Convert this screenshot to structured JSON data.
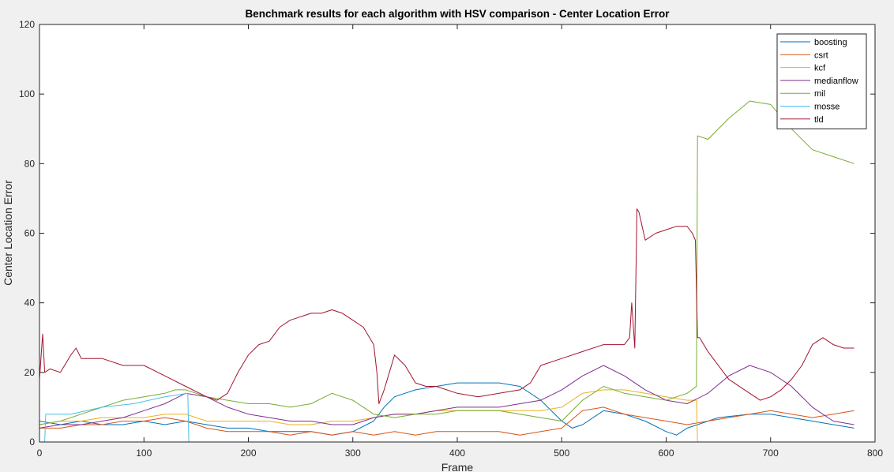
{
  "chart_data": {
    "type": "line",
    "title": "Benchmark results for each algorithm with HSV comparison - Center Location Error",
    "xlabel": "Frame",
    "ylabel": "Center Location Error",
    "xlim": [
      0,
      800
    ],
    "ylim": [
      0,
      120
    ],
    "xticks": [
      0,
      100,
      200,
      300,
      400,
      500,
      600,
      700,
      800
    ],
    "yticks": [
      0,
      20,
      40,
      60,
      80,
      100,
      120
    ],
    "grid": false,
    "legend_position": "top-right",
    "series": [
      {
        "name": "boosting",
        "color": "#0072BD",
        "x": [
          0,
          20,
          40,
          60,
          80,
          100,
          120,
          140,
          160,
          180,
          200,
          220,
          240,
          260,
          280,
          300,
          320,
          330,
          340,
          360,
          380,
          400,
          420,
          440,
          460,
          480,
          500,
          510,
          520,
          540,
          560,
          580,
          600,
          610,
          620,
          630,
          650,
          680,
          700,
          720,
          740,
          760,
          780
        ],
        "y": [
          6,
          5,
          6,
          5,
          5,
          6,
          5,
          6,
          5,
          4,
          4,
          3,
          3,
          3,
          2,
          3,
          6,
          10,
          13,
          15,
          16,
          17,
          17,
          17,
          16,
          12,
          6,
          4,
          5,
          9,
          8,
          6,
          3,
          2,
          4,
          5,
          7,
          8,
          8,
          7,
          6,
          5,
          4
        ]
      },
      {
        "name": "csrt",
        "color": "#D95319",
        "x": [
          0,
          20,
          40,
          60,
          80,
          100,
          120,
          140,
          160,
          180,
          200,
          220,
          240,
          260,
          280,
          300,
          320,
          340,
          360,
          380,
          400,
          420,
          440,
          460,
          480,
          500,
          520,
          540,
          560,
          580,
          600,
          620,
          640,
          660,
          680,
          700,
          720,
          740,
          760,
          780
        ],
        "y": [
          4,
          4,
          5,
          5,
          6,
          6,
          7,
          6,
          4,
          3,
          3,
          3,
          2,
          3,
          2,
          3,
          2,
          3,
          2,
          3,
          3,
          3,
          3,
          2,
          3,
          4,
          9,
          10,
          8,
          7,
          6,
          5,
          6,
          7,
          8,
          9,
          8,
          7,
          8,
          9
        ]
      },
      {
        "name": "kcf",
        "color": "#EDB120",
        "x": [
          0,
          20,
          40,
          60,
          80,
          100,
          120,
          140,
          160,
          180,
          200,
          220,
          240,
          260,
          280,
          300,
          320,
          340,
          360,
          380,
          400,
          420,
          440,
          460,
          480,
          500,
          520,
          540,
          560,
          580,
          600,
          620,
          629,
          630
        ],
        "y": [
          5,
          6,
          6,
          7,
          7,
          7,
          8,
          8,
          6,
          6,
          6,
          6,
          5,
          5,
          6,
          6,
          7,
          8,
          8,
          9,
          9,
          9,
          9,
          9,
          9,
          10,
          14,
          15,
          15,
          14,
          13,
          12,
          12,
          0
        ]
      },
      {
        "name": "medianflow",
        "color": "#7E2F8E",
        "x": [
          0,
          20,
          40,
          60,
          80,
          100,
          120,
          140,
          160,
          180,
          200,
          220,
          240,
          260,
          280,
          300,
          320,
          340,
          360,
          380,
          400,
          420,
          440,
          460,
          480,
          500,
          520,
          540,
          560,
          580,
          600,
          620,
          640,
          660,
          680,
          700,
          720,
          740,
          760,
          780
        ],
        "y": [
          4,
          5,
          5,
          6,
          7,
          9,
          11,
          14,
          13,
          10,
          8,
          7,
          6,
          6,
          5,
          5,
          7,
          8,
          8,
          9,
          10,
          10,
          10,
          11,
          12,
          15,
          19,
          22,
          19,
          15,
          12,
          11,
          14,
          19,
          22,
          20,
          16,
          10,
          6,
          5
        ]
      },
      {
        "name": "mil",
        "color": "#77AC30",
        "x": [
          0,
          20,
          40,
          60,
          80,
          100,
          120,
          130,
          140,
          160,
          180,
          200,
          220,
          240,
          260,
          280,
          300,
          320,
          340,
          360,
          380,
          400,
          420,
          440,
          460,
          480,
          500,
          520,
          540,
          560,
          580,
          600,
          620,
          629,
          630,
          640,
          660,
          680,
          700,
          720,
          740,
          760,
          780
        ],
        "y": [
          5,
          6,
          8,
          10,
          12,
          13,
          14,
          15,
          15,
          13,
          12,
          11,
          11,
          10,
          11,
          14,
          12,
          8,
          7,
          8,
          8,
          9,
          9,
          9,
          8,
          7,
          6,
          12,
          16,
          14,
          13,
          12,
          14,
          16,
          88,
          87,
          93,
          98,
          97,
          90,
          84,
          82,
          80
        ]
      },
      {
        "name": "mosse",
        "color": "#4DBEEE",
        "x": [
          0,
          5,
          6,
          30,
          60,
          90,
          120,
          142,
          143,
          780
        ],
        "y": [
          0,
          0,
          8,
          8,
          10,
          11,
          13,
          14,
          0,
          0
        ]
      },
      {
        "name": "tld",
        "color": "#A2142F",
        "x": [
          0,
          3,
          5,
          10,
          20,
          30,
          35,
          40,
          60,
          80,
          100,
          120,
          140,
          160,
          170,
          180,
          190,
          200,
          210,
          220,
          230,
          240,
          250,
          260,
          270,
          280,
          290,
          300,
          310,
          320,
          323,
          325,
          330,
          340,
          350,
          360,
          370,
          380,
          400,
          420,
          440,
          460,
          470,
          480,
          500,
          520,
          540,
          560,
          565,
          567,
          570,
          572,
          574,
          580,
          590,
          600,
          610,
          620,
          625,
          628,
          630,
          632,
          640,
          660,
          680,
          690,
          700,
          710,
          720,
          730,
          740,
          750,
          760,
          770,
          780
        ],
        "y": [
          18,
          31,
          20,
          21,
          20,
          25,
          27,
          24,
          24,
          22,
          22,
          19,
          16,
          13,
          12,
          14,
          20,
          25,
          28,
          29,
          33,
          35,
          36,
          37,
          37,
          38,
          37,
          35,
          33,
          28,
          20,
          11,
          15,
          25,
          22,
          17,
          16,
          16,
          14,
          13,
          14,
          15,
          17,
          22,
          24,
          26,
          28,
          28,
          30,
          40,
          27,
          67,
          66,
          58,
          60,
          61,
          62,
          62,
          60,
          58,
          30,
          30,
          26,
          18,
          14,
          12,
          13,
          15,
          18,
          22,
          28,
          30,
          28,
          27,
          27
        ]
      }
    ]
  }
}
